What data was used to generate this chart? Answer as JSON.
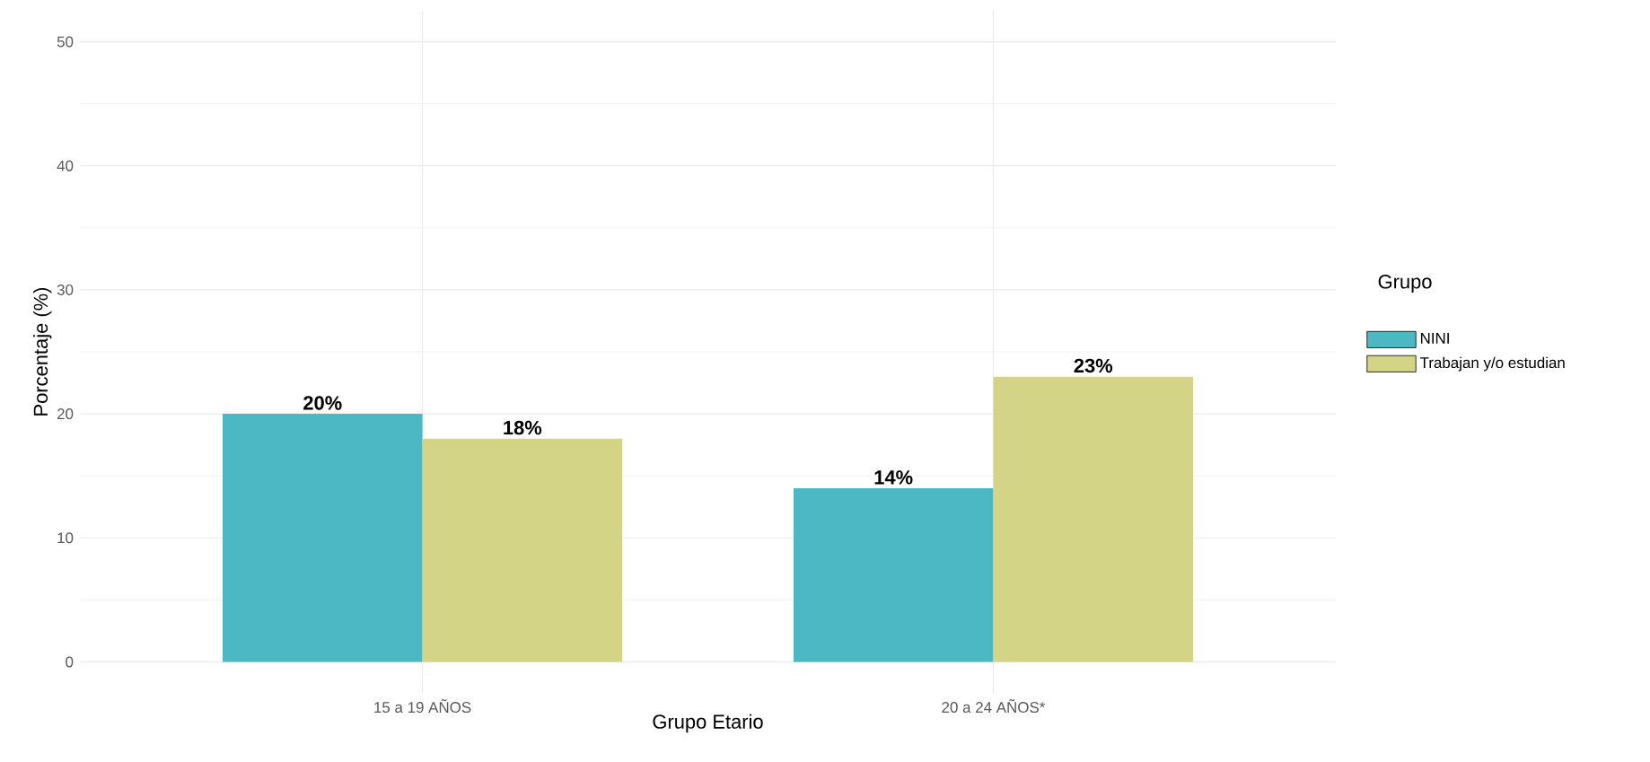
{
  "chart_data": {
    "type": "bar",
    "xlabel": "Grupo Etario",
    "ylabel": "Porcentaje (%)",
    "legend_title": "Grupo",
    "categories": [
      "15 a 19 AÑOS",
      "20 a 24 AÑOS*"
    ],
    "series": [
      {
        "name": "NINI",
        "color": "#4bb8c4",
        "values": [
          20,
          14
        ],
        "value_labels": [
          "20%",
          "14%"
        ]
      },
      {
        "name": "Trabajan y/o estudian",
        "color": "#d4d486",
        "values": [
          18,
          23
        ],
        "value_labels": [
          "18%",
          "23%"
        ]
      }
    ],
    "ylim": [
      -2.5,
      52.5
    ],
    "yticks": [
      0,
      10,
      20,
      30,
      40,
      50
    ],
    "grid": true,
    "legend": "right"
  }
}
